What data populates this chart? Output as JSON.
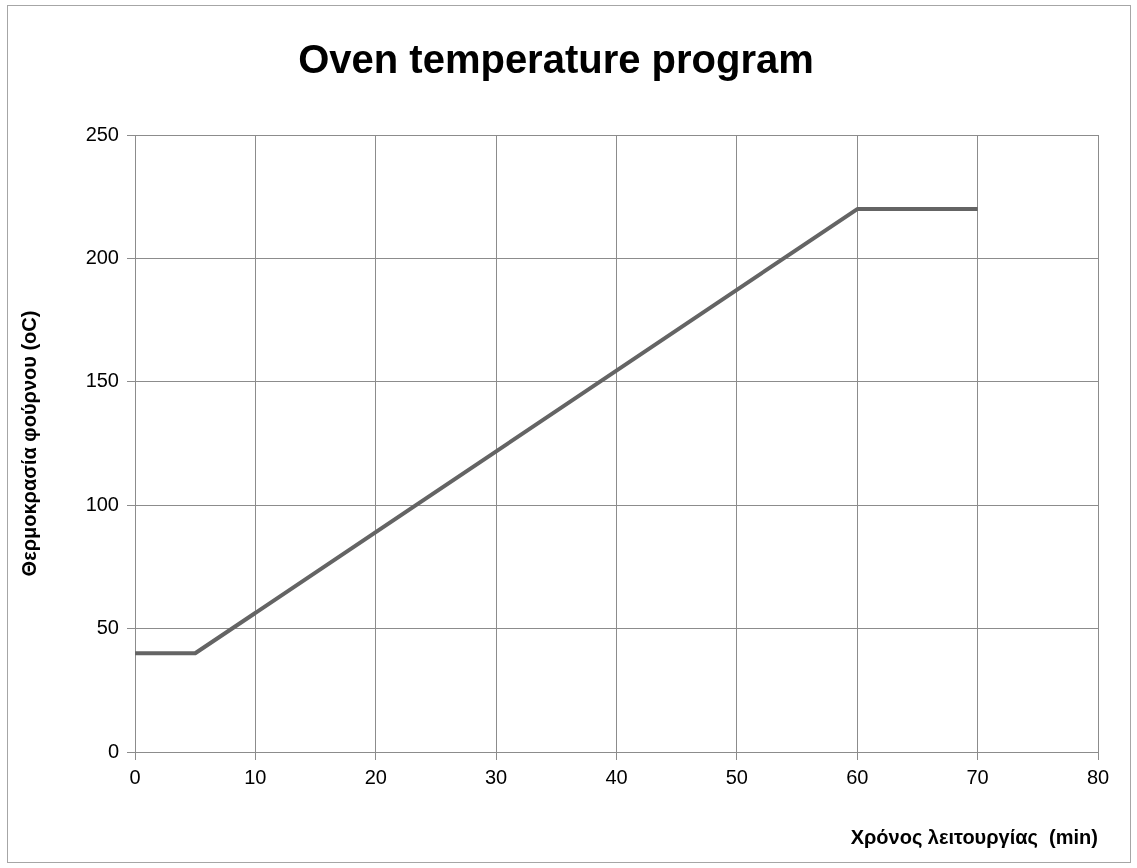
{
  "chart_data": {
    "type": "line",
    "title": "Oven temperature program",
    "xlabel": "Χρόνος λειτουργίας  (min)",
    "ylabel": "Θερμοκρασία φούρνου (oC)",
    "x": [
      0,
      5,
      60,
      70
    ],
    "values": [
      40,
      40,
      220,
      220
    ],
    "color": "#646464",
    "xlim": [
      0,
      80
    ],
    "xticks": [
      0,
      10,
      20,
      30,
      40,
      50,
      60,
      70,
      80
    ],
    "ylim": [
      0,
      250
    ],
    "yticks": [
      0,
      50,
      100,
      150,
      200,
      250
    ],
    "grid": true
  }
}
